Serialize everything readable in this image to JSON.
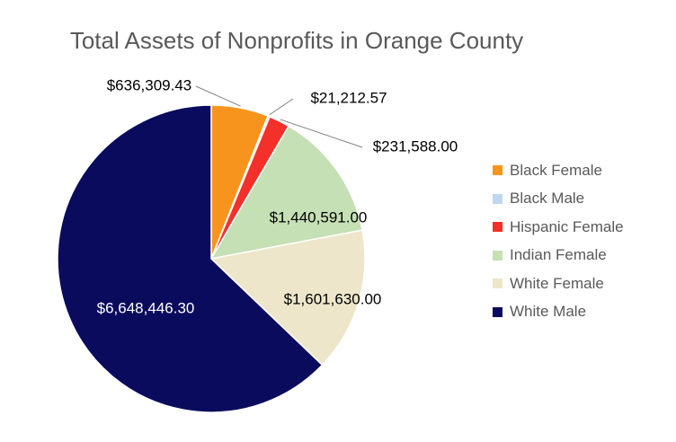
{
  "chart_data": {
    "type": "pie",
    "title": "Total Assets of Nonprofits in Orange County",
    "categories": [
      "Black Female",
      "Black Male",
      "Hispanic Female",
      "Indian Female",
      "White Female",
      "White Male"
    ],
    "values": [
      636309.43,
      21212.57,
      231588.0,
      1440591.0,
      1601630.0,
      6648446.3
    ],
    "data_labels": [
      "$636,309.43",
      "$21,212.57",
      "$231,588.00",
      "$1,440,591.00",
      "$1,601,630.00",
      "$6,648,446.30"
    ],
    "colors": [
      "#F7941D",
      "#BDD7EE",
      "#F4302A",
      "#C5E0B4",
      "#EDE6CA",
      "#0B0B5E"
    ],
    "label_colors": [
      "#000000",
      "#000000",
      "#000000",
      "#000000",
      "#000000",
      "#FFFFFF"
    ],
    "legend_position": "right",
    "start_angle": "12 o'clock",
    "direction": "clockwise"
  }
}
